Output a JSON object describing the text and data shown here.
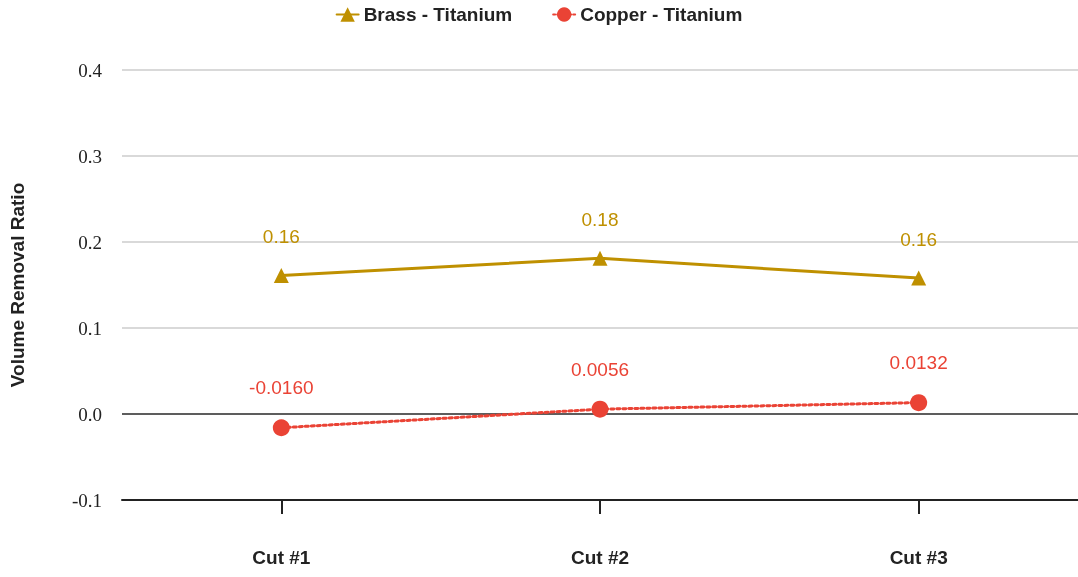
{
  "chart_data": {
    "type": "line",
    "ylabel": "Volume Removal Ratio",
    "categories": [
      "Cut #1",
      "Cut #2",
      "Cut #3"
    ],
    "series": [
      {
        "name": "Brass - Titanium",
        "color": "#bf9000",
        "values": [
          0.161,
          0.181,
          0.158
        ],
        "value_labels": [
          "0.16",
          "0.18",
          "0.16"
        ],
        "marker": "triangle",
        "line_style": "solid"
      },
      {
        "name": "Copper - Titanium",
        "color": "#ea4335",
        "values": [
          -0.016,
          0.0056,
          0.0132
        ],
        "value_labels": [
          "-0.0160",
          "0.0056",
          "0.0132"
        ],
        "marker": "circle",
        "line_style": "dotted"
      }
    ],
    "ylim": [
      -0.1,
      0.4
    ],
    "yticks": [
      {
        "value": -0.1,
        "label": "-0.1"
      },
      {
        "value": 0,
        "label": "0.0"
      },
      {
        "value": 0.1,
        "label": "0.1"
      },
      {
        "value": 0.2,
        "label": "0.2"
      },
      {
        "value": 0.3,
        "label": "0.3"
      },
      {
        "value": 0.4,
        "label": "0.4"
      }
    ],
    "ref_lines": [
      {
        "axis": "y",
        "value": 0,
        "color": "#333333"
      }
    ],
    "grid": "y",
    "legend": "top"
  }
}
